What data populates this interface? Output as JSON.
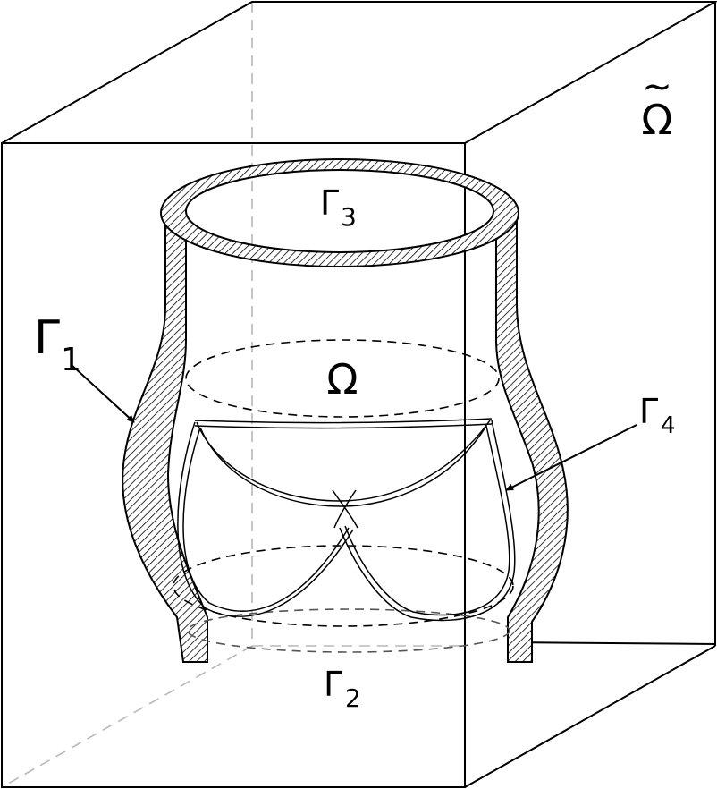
{
  "labels": {
    "outer_domain": {
      "symbol": "Ω",
      "accent": "~"
    },
    "inner_domain": "Ω",
    "gamma1": {
      "base": "Γ",
      "sub": "1"
    },
    "gamma2": {
      "base": "Γ",
      "sub": "2"
    },
    "gamma3": {
      "base": "Γ",
      "sub": "3"
    },
    "gamma4": {
      "base": "Γ",
      "sub": "4"
    }
  }
}
